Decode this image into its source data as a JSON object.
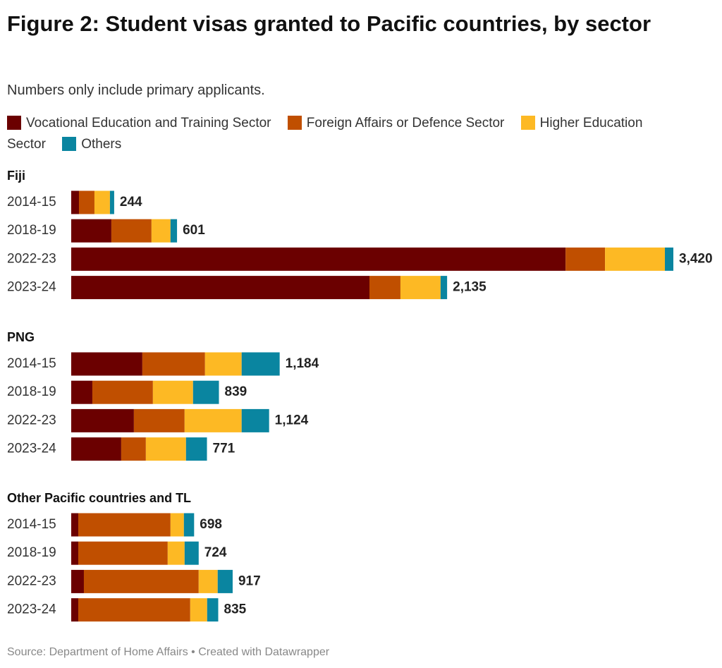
{
  "chart_data": {
    "type": "bar",
    "orientation": "horizontal",
    "stacked": true,
    "title": "Figure 2: Student visas granted to Pacific countries, by sector",
    "subtitle": "Numbers only include primary applicants.",
    "source": "Source: Department of Home Affairs • Created with Datawrapper",
    "series": [
      {
        "name": "Vocational Education and Training Sector",
        "color": "#6b0000"
      },
      {
        "name": "Foreign Affairs or Defence Sector",
        "color": "#c04f00"
      },
      {
        "name": "Higher Education Sector",
        "color": "#fdb924"
      },
      {
        "name": "Others",
        "color": "#0a85a0"
      }
    ],
    "groups": [
      {
        "name": "Fiji",
        "categories": [
          "2014-15",
          "2018-19",
          "2022-23",
          "2023-24"
        ],
        "values": [
          [
            44,
            228,
            2808,
            1694
          ],
          [
            88,
            228,
            224,
            176
          ],
          [
            88,
            108,
            340,
            228
          ],
          [
            24,
            37,
            48,
            37
          ]
        ],
        "totals": [
          244,
          601,
          3420,
          2135
        ],
        "total_labels": [
          "244",
          "601",
          "3,420",
          "2,135"
        ]
      },
      {
        "name": "PNG",
        "categories": [
          "2014-15",
          "2018-19",
          "2022-23",
          "2023-24"
        ],
        "values": [
          [
            404,
            120,
            356,
            284
          ],
          [
            356,
            344,
            288,
            140
          ],
          [
            208,
            228,
            324,
            228
          ],
          [
            216,
            147,
            156,
            119
          ]
        ],
        "totals": [
          1184,
          839,
          1124,
          771
        ],
        "total_labels": [
          "1,184",
          "839",
          "1,124",
          "771"
        ]
      },
      {
        "name": "Other Pacific countries and TL",
        "categories": [
          "2014-15",
          "2018-19",
          "2022-23",
          "2023-24"
        ],
        "values": [
          [
            40,
            40,
            72,
            40
          ],
          [
            524,
            508,
            652,
            636
          ],
          [
            76,
            96,
            108,
            96
          ],
          [
            58,
            80,
            85,
            63
          ]
        ],
        "totals": [
          698,
          724,
          917,
          835
        ],
        "total_labels": [
          "698",
          "724",
          "917",
          "835"
        ]
      }
    ]
  }
}
